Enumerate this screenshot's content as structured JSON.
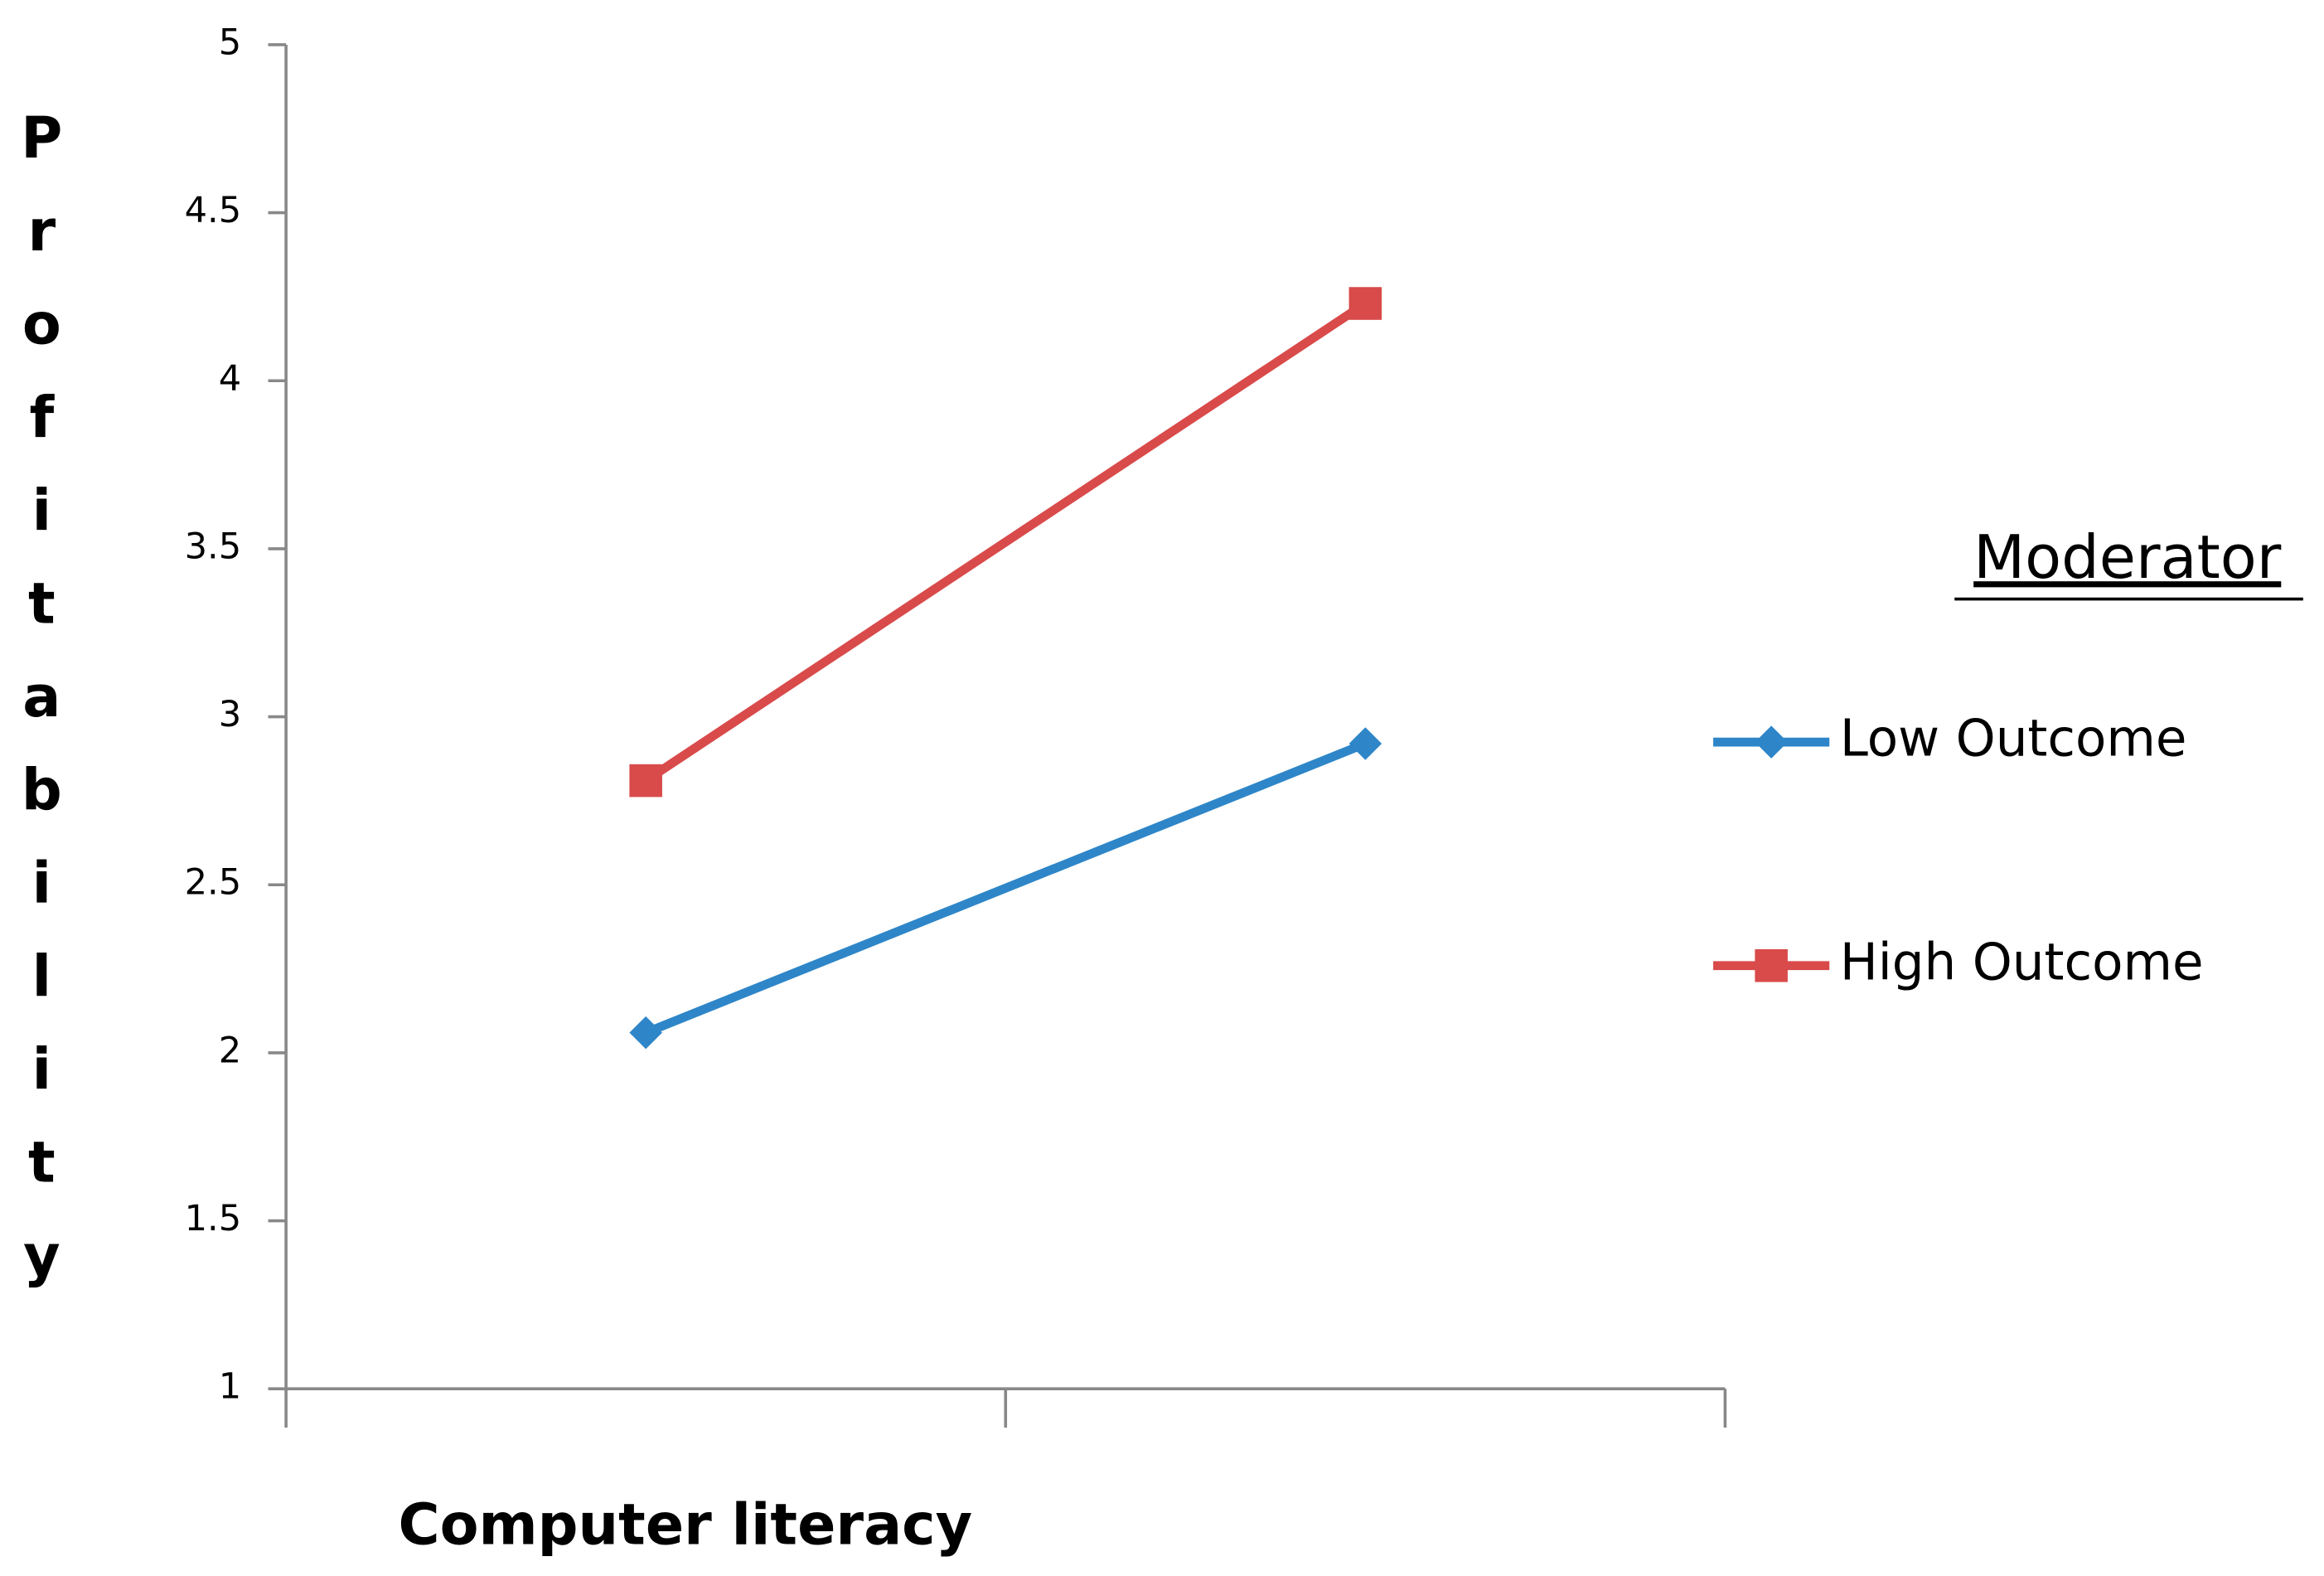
{
  "chart_data": {
    "type": "line",
    "x_label": "Computer literacy",
    "y_label": "Profitability",
    "legend_title": "Moderator",
    "legend": "right",
    "categories": [
      null,
      null
    ],
    "series": [
      {
        "name": "Low Outcome",
        "color": "#2e86c8",
        "marker": "diamond",
        "values": [
          2.06,
          2.92
        ]
      },
      {
        "name": "High Outcome",
        "color": "#d94a4a",
        "marker": "square",
        "values": [
          2.81,
          4.23
        ]
      }
    ],
    "ylim": [
      1,
      5
    ],
    "yticks": [
      1,
      1.5,
      2,
      2.5,
      3,
      3.5,
      4,
      4.5,
      5
    ],
    "grid": false
  }
}
